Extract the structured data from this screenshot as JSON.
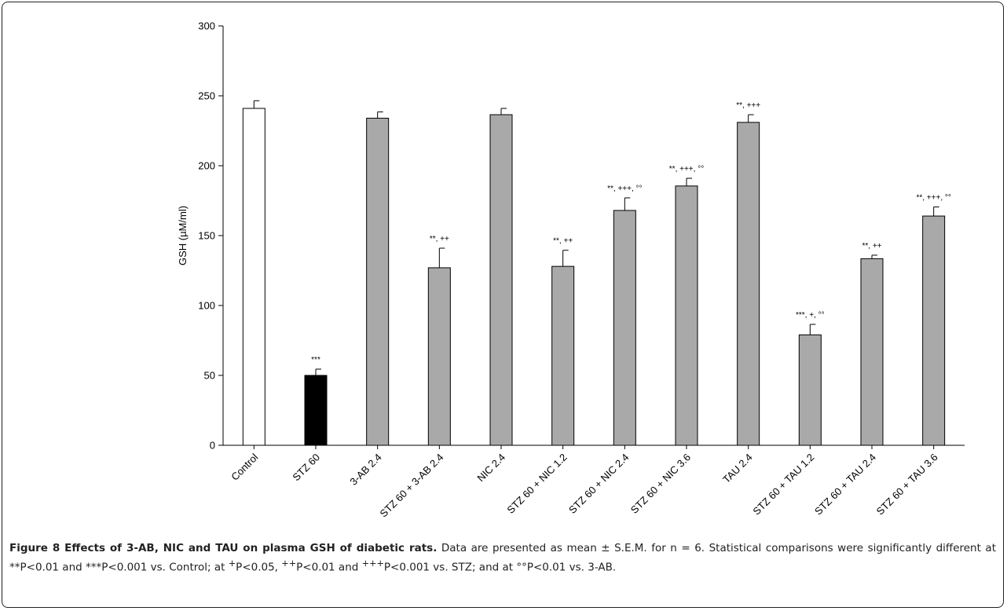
{
  "chart_data": {
    "type": "bar",
    "ylabel": "GSH (µM/ml)",
    "ylim": [
      0,
      300
    ],
    "yticks": [
      0,
      50,
      100,
      150,
      200,
      250,
      300
    ],
    "grid": false,
    "categories": [
      "Control",
      "STZ 60",
      "3-AB 2.4",
      "STZ 60 + 3-AB 2.4",
      "NIC 2.4",
      "STZ 60 + NIC 1.2",
      "STZ 60 + NIC 2.4",
      "STZ 60 + NIC 3.6",
      "TAU 2.4",
      "STZ 60 + TAU 1.2",
      "STZ 60 + TAU 2.4",
      "STZ 60 + TAU 3.6"
    ],
    "values": [
      241,
      50,
      234,
      127,
      236.5,
      128,
      168,
      185.5,
      231,
      79,
      133.5,
      164
    ],
    "errors": [
      5.5,
      4.5,
      4.5,
      14,
      4.5,
      11.5,
      9,
      5.5,
      5.5,
      7.5,
      2.5,
      6.5
    ],
    "annotations": [
      "",
      "***",
      "",
      "**, ++",
      "",
      "**, ++",
      "**, +++, °°",
      "**, +++, °°",
      "**, +++",
      "***, +, °°",
      "**, ++",
      "**, +++, °°"
    ],
    "bar_colors": [
      "#ffffff",
      "#000000",
      "#a9a9a9",
      "#a9a9a9",
      "#a9a9a9",
      "#a9a9a9",
      "#a9a9a9",
      "#a9a9a9",
      "#a9a9a9",
      "#a9a9a9",
      "#a9a9a9",
      "#a9a9a9"
    ]
  },
  "caption": {
    "bold": "Figure 8 Effects of 3-AB, NIC and TAU on plasma GSH of diabetic rats.",
    "t1": " Data are presented as mean ± S.E.M. for n = 6. Statistical comparisons were significantly different at **P<0.01 and ***P<0.001 vs. Control; at ",
    "s1": "+",
    "t2": "P<0.05, ",
    "s2": "++",
    "t3": "P<0.01 and ",
    "s3": "+++",
    "t4": "P<0.001 vs. STZ; and at °°P<0.01 vs. 3-AB."
  }
}
